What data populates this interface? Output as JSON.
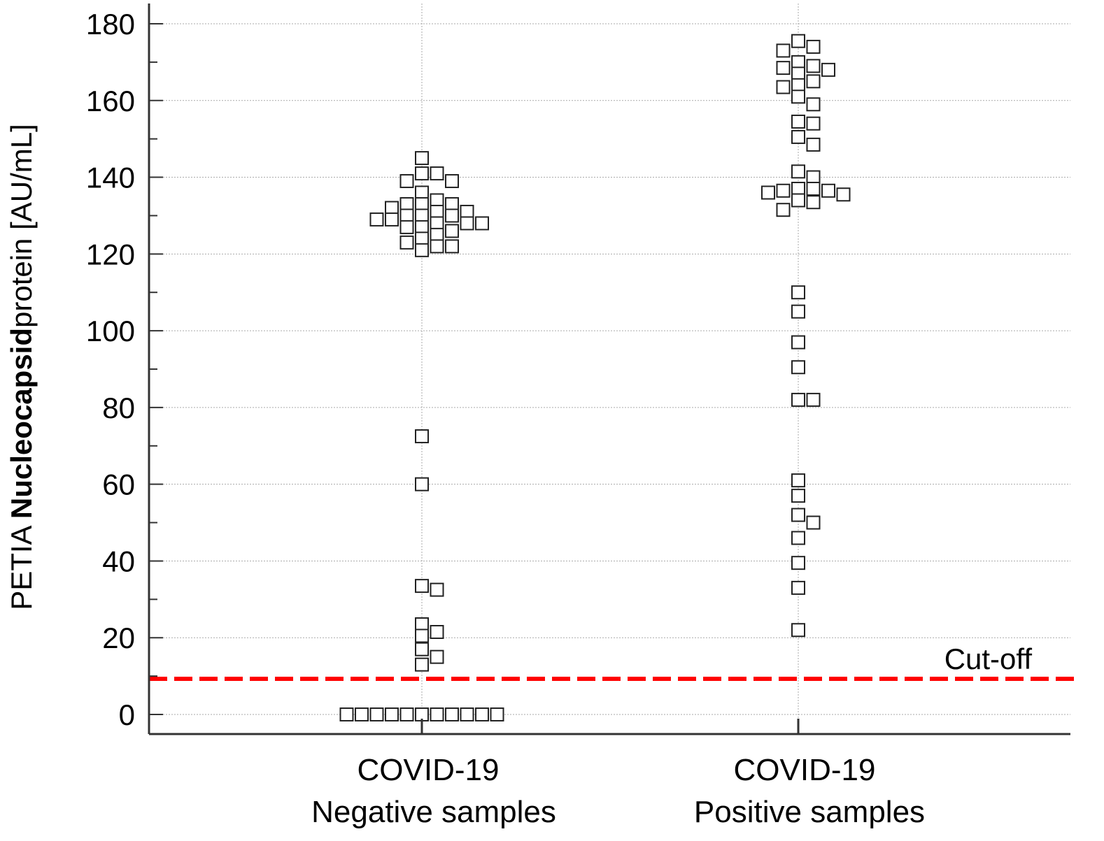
{
  "chart_data": {
    "type": "scatter",
    "subtype": "dot-plot",
    "ylabel_parts": [
      "PETIA ",
      "Nucleocapsid",
      "protein [AU/mL]"
    ],
    "ylim": [
      0,
      180
    ],
    "yticks": [
      0,
      20,
      40,
      60,
      80,
      100,
      120,
      140,
      160,
      180
    ],
    "grid": true,
    "categories": [
      {
        "line1": "COVID-19",
        "line2": "Negative samples"
      },
      {
        "line1": "COVID-19",
        "line2": "Positive samples"
      }
    ],
    "series": [
      {
        "category": 0,
        "values": [
          145,
          141,
          141,
          139,
          139,
          136,
          134,
          133,
          133,
          133,
          132,
          131,
          131,
          130,
          130,
          130,
          129,
          129,
          128,
          128,
          128,
          127,
          127,
          126,
          125,
          124,
          123,
          122,
          122,
          121,
          72.5,
          60,
          33.5,
          32.5,
          23.5,
          21.5,
          20.5,
          17,
          15,
          13,
          0,
          0,
          0,
          0,
          0,
          0,
          0,
          0,
          0,
          0,
          0
        ]
      },
      {
        "category": 1,
        "values": [
          175.5,
          174,
          173,
          170,
          169,
          168.5,
          168,
          167,
          165,
          164,
          163.5,
          161,
          159,
          154.5,
          154,
          150.5,
          148.5,
          141.5,
          140,
          137,
          137,
          136.5,
          136.5,
          136,
          135.5,
          134,
          133.5,
          131.5,
          110,
          105,
          97,
          90.5,
          82,
          82,
          61,
          57,
          52,
          50,
          46,
          39.5,
          33,
          22
        ]
      }
    ],
    "marker": "open-square",
    "cutoff": {
      "value": 9.3,
      "label": "Cut-off",
      "color": "#ff0000",
      "style": "dashed"
    }
  }
}
